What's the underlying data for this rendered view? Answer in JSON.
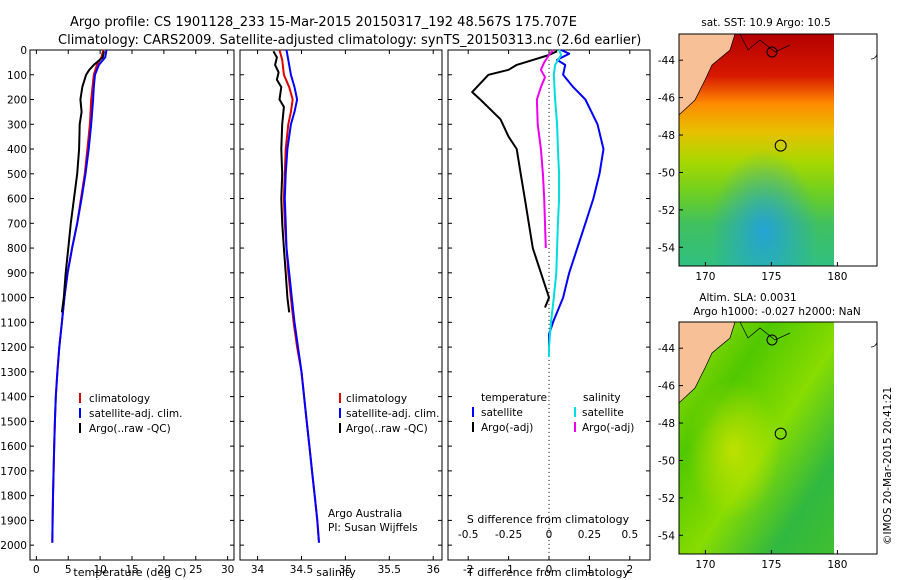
{
  "header": {
    "line1": "Argo profile: CS 1901128_233 15-Mar-2015 20150317_192 48.567S 175.707E",
    "line2": "Climatology: CARS2009. Satellite-adjusted climatology: synTS_20150313.nc (2.6d earlier)"
  },
  "colors": {
    "climatology": "#e00000",
    "satellite": "#0000ff",
    "argo": "#000000",
    "sal_satellite": "#00dddd",
    "sal_argo": "#ee00ee"
  },
  "credits": {
    "agency": "Argo Australia",
    "pi": "PI: Susan Wijffels",
    "imos": "©IMOS 20-Mar-2015 20:41:21"
  },
  "chart_data": [
    {
      "type": "line",
      "name": "temperature-profile",
      "xlabel": "temperature (deg C)",
      "xlim": [
        -1,
        31
      ],
      "xticks": [
        0,
        5,
        10,
        15,
        20,
        25,
        30
      ],
      "ylim": [
        0,
        2060
      ],
      "yreversed": true,
      "yticks": [
        0,
        100,
        200,
        300,
        400,
        500,
        600,
        700,
        800,
        900,
        1000,
        1100,
        1200,
        1300,
        1400,
        1500,
        1600,
        1700,
        1800,
        1900,
        2000
      ],
      "legend": [
        "climatology",
        "satellite-adj. clim.",
        "Argo(..raw -QC)"
      ],
      "series": [
        {
          "name": "climatology",
          "color": "#e00000",
          "points": [
            [
              10.5,
              0
            ],
            [
              10.2,
              30
            ],
            [
              9.5,
              60
            ],
            [
              9.0,
              100
            ],
            [
              8.8,
              150
            ],
            [
              8.6,
              200
            ],
            [
              8.4,
              300
            ],
            [
              8.0,
              400
            ],
            [
              7.6,
              500
            ],
            [
              7.0,
              600
            ],
            [
              6.4,
              700
            ],
            [
              5.6,
              800
            ],
            [
              4.9,
              900
            ],
            [
              4.4,
              1000
            ],
            [
              4.0,
              1100
            ],
            [
              3.6,
              1200
            ],
            [
              3.3,
              1300
            ],
            [
              3.05,
              1400
            ],
            [
              2.9,
              1500
            ],
            [
              2.8,
              1600
            ],
            [
              2.7,
              1700
            ],
            [
              2.6,
              1800
            ],
            [
              2.55,
              1900
            ],
            [
              2.5,
              1990
            ]
          ]
        },
        {
          "name": "satellite-adj. clim.",
          "color": "#0000ff",
          "points": [
            [
              11.0,
              0
            ],
            [
              10.8,
              30
            ],
            [
              9.8,
              60
            ],
            [
              9.2,
              100
            ],
            [
              9.0,
              150
            ],
            [
              8.9,
              200
            ],
            [
              8.6,
              300
            ],
            [
              8.2,
              400
            ],
            [
              7.7,
              500
            ],
            [
              7.1,
              600
            ],
            [
              6.4,
              700
            ],
            [
              5.6,
              800
            ],
            [
              4.9,
              900
            ],
            [
              4.4,
              1000
            ],
            [
              4.0,
              1100
            ],
            [
              3.6,
              1200
            ],
            [
              3.3,
              1300
            ],
            [
              3.05,
              1400
            ],
            [
              2.9,
              1500
            ],
            [
              2.8,
              1600
            ],
            [
              2.7,
              1700
            ],
            [
              2.6,
              1800
            ],
            [
              2.55,
              1900
            ],
            [
              2.5,
              1990
            ]
          ]
        },
        {
          "name": "Argo(..raw -QC)",
          "color": "#000000",
          "points": [
            [
              10.6,
              5
            ],
            [
              10.4,
              30
            ],
            [
              9.0,
              60
            ],
            [
              8.3,
              80
            ],
            [
              7.8,
              100
            ],
            [
              7.2,
              150
            ],
            [
              6.9,
              200
            ],
            [
              7.1,
              250
            ],
            [
              6.8,
              300
            ],
            [
              6.7,
              400
            ],
            [
              6.4,
              500
            ],
            [
              5.9,
              600
            ],
            [
              5.4,
              700
            ],
            [
              5.0,
              800
            ],
            [
              4.6,
              900
            ],
            [
              4.3,
              1000
            ],
            [
              4.0,
              1060
            ]
          ]
        }
      ]
    },
    {
      "type": "line",
      "name": "salinity-profile",
      "xlabel": "salinity",
      "xlim": [
        33.8,
        36.1
      ],
      "xticks": [
        34,
        34.5,
        35,
        35.5,
        36
      ],
      "ylim": [
        0,
        2060
      ],
      "yreversed": true,
      "legend": [
        "climatology",
        "satellite-adj. clim.",
        "Argo(..raw -QC)"
      ],
      "series": [
        {
          "name": "climatology",
          "color": "#e00000",
          "points": [
            [
              34.25,
              0
            ],
            [
              34.28,
              40
            ],
            [
              34.3,
              100
            ],
            [
              34.36,
              150
            ],
            [
              34.4,
              200
            ],
            [
              34.38,
              250
            ],
            [
              34.35,
              300
            ],
            [
              34.32,
              400
            ],
            [
              34.31,
              500
            ],
            [
              34.3,
              600
            ],
            [
              34.31,
              700
            ],
            [
              34.33,
              800
            ],
            [
              34.35,
              900
            ],
            [
              34.38,
              1000
            ],
            [
              34.41,
              1100
            ],
            [
              34.45,
              1200
            ],
            [
              34.5,
              1300
            ],
            [
              34.53,
              1400
            ],
            [
              34.56,
              1500
            ],
            [
              34.59,
              1600
            ],
            [
              34.62,
              1700
            ],
            [
              34.65,
              1800
            ],
            [
              34.68,
              1900
            ],
            [
              34.7,
              1990
            ]
          ]
        },
        {
          "name": "satellite-adj. clim.",
          "color": "#0000ff",
          "points": [
            [
              34.33,
              0
            ],
            [
              34.35,
              40
            ],
            [
              34.38,
              100
            ],
            [
              34.42,
              150
            ],
            [
              34.45,
              200
            ],
            [
              34.42,
              250
            ],
            [
              34.38,
              300
            ],
            [
              34.34,
              400
            ],
            [
              34.32,
              500
            ],
            [
              34.31,
              600
            ],
            [
              34.32,
              700
            ],
            [
              34.33,
              800
            ],
            [
              34.36,
              900
            ],
            [
              34.39,
              1000
            ],
            [
              34.42,
              1100
            ],
            [
              34.46,
              1200
            ],
            [
              34.5,
              1300
            ],
            [
              34.53,
              1400
            ],
            [
              34.56,
              1500
            ],
            [
              34.59,
              1600
            ],
            [
              34.62,
              1700
            ],
            [
              34.65,
              1800
            ],
            [
              34.68,
              1900
            ],
            [
              34.7,
              1990
            ]
          ]
        },
        {
          "name": "Argo(..raw -QC)",
          "color": "#000000",
          "points": [
            [
              34.18,
              5
            ],
            [
              34.22,
              30
            ],
            [
              34.2,
              60
            ],
            [
              34.24,
              90
            ],
            [
              34.22,
              120
            ],
            [
              34.27,
              150
            ],
            [
              34.25,
              200
            ],
            [
              34.3,
              230
            ],
            [
              34.28,
              300
            ],
            [
              34.27,
              400
            ],
            [
              34.28,
              500
            ],
            [
              34.27,
              600
            ],
            [
              34.28,
              700
            ],
            [
              34.3,
              800
            ],
            [
              34.32,
              900
            ],
            [
              34.34,
              1000
            ],
            [
              34.36,
              1060
            ]
          ]
        }
      ]
    },
    {
      "type": "line",
      "name": "difference-profile",
      "xlabel_top": "S difference from climatology",
      "xlabel": "T difference from climatology",
      "xlim": [
        -2.5,
        2.5
      ],
      "xticks": [
        -2,
        -1,
        0,
        1,
        2
      ],
      "sticks": [
        -0.5,
        -0.25,
        0,
        0.25,
        0.5
      ],
      "slabels": [
        "-0.5",
        "-0.25",
        "0",
        "0.25",
        "0.5"
      ],
      "ylim": [
        0,
        2060
      ],
      "yreversed": true,
      "legend_temperature_title": "temperature",
      "legend_salinity_title": "salinity",
      "legend": [
        "satellite",
        "Argo(-adj)",
        "satellite",
        "Argo(-adj)"
      ],
      "series": [
        {
          "name": "satellite",
          "color": "#0000ff",
          "points": [
            [
              0.3,
              0
            ],
            [
              0.5,
              15
            ],
            [
              0.2,
              40
            ],
            [
              0.4,
              60
            ],
            [
              0.35,
              100
            ],
            [
              0.6,
              150
            ],
            [
              0.9,
              200
            ],
            [
              1.2,
              300
            ],
            [
              1.35,
              400
            ],
            [
              1.25,
              500
            ],
            [
              1.1,
              600
            ],
            [
              0.9,
              700
            ],
            [
              0.7,
              800
            ],
            [
              0.5,
              900
            ],
            [
              0.35,
              1000
            ],
            [
              0.1,
              1100
            ],
            [
              0.0,
              1150
            ],
            [
              0.0,
              1240
            ]
          ]
        },
        {
          "name": "Argo(-adj)",
          "color": "#000000",
          "points": [
            [
              0.2,
              5
            ],
            [
              0.0,
              20
            ],
            [
              -0.8,
              60
            ],
            [
              -1.0,
              80
            ],
            [
              -1.5,
              100
            ],
            [
              -1.9,
              170
            ],
            [
              -1.7,
              200
            ],
            [
              -1.2,
              280
            ],
            [
              -1.0,
              350
            ],
            [
              -0.8,
              400
            ],
            [
              -0.7,
              500
            ],
            [
              -0.6,
              600
            ],
            [
              -0.5,
              700
            ],
            [
              -0.4,
              800
            ],
            [
              -0.2,
              900
            ],
            [
              0.0,
              1000
            ],
            [
              -0.1,
              1040
            ]
          ]
        },
        {
          "name": "salinity satellite",
          "color": "#00dddd",
          "points": [
            [
              0.25,
              0
            ],
            [
              0.3,
              20
            ],
            [
              0.15,
              60
            ],
            [
              0.12,
              100
            ],
            [
              0.15,
              200
            ],
            [
              0.2,
              300
            ],
            [
              0.22,
              400
            ],
            [
              0.25,
              500
            ],
            [
              0.25,
              600
            ],
            [
              0.22,
              700
            ],
            [
              0.2,
              800
            ],
            [
              0.18,
              900
            ],
            [
              0.12,
              1000
            ],
            [
              0.05,
              1100
            ],
            [
              0.0,
              1200
            ],
            [
              0.0,
              1240
            ]
          ]
        },
        {
          "name": "salinity Argo(-adj)",
          "color": "#ee00ee",
          "points": [
            [
              0.1,
              0
            ],
            [
              0.0,
              20
            ],
            [
              -0.12,
              50
            ],
            [
              -0.2,
              80
            ],
            [
              -0.1,
              110
            ],
            [
              -0.2,
              150
            ],
            [
              -0.3,
              200
            ],
            [
              -0.28,
              300
            ],
            [
              -0.2,
              400
            ],
            [
              -0.15,
              500
            ],
            [
              -0.12,
              600
            ],
            [
              -0.1,
              700
            ],
            [
              -0.08,
              800
            ]
          ]
        }
      ]
    },
    {
      "type": "heatmap",
      "name": "sst-map",
      "title": "sat. SST: 10.9 Argo: 10.5",
      "xlim": [
        168,
        183
      ],
      "ylim": [
        -55,
        -42.6
      ],
      "xticks": [
        170,
        175,
        180
      ],
      "yticks": [
        -44,
        -46,
        -48,
        -50,
        -52,
        -54
      ],
      "float_position": [
        175.707,
        -48.567
      ]
    },
    {
      "type": "heatmap",
      "name": "sla-map",
      "title": "Altim. SLA: 0.0031",
      "subtitle": "Argo h1000: -0.027 h2000: NaN",
      "xlim": [
        168,
        183
      ],
      "ylim": [
        -55,
        -42.6
      ],
      "xticks": [
        170,
        175,
        180
      ],
      "yticks": [
        -44,
        -46,
        -48,
        -50,
        -52,
        -54
      ],
      "float_position": [
        175.707,
        -48.567
      ]
    }
  ]
}
